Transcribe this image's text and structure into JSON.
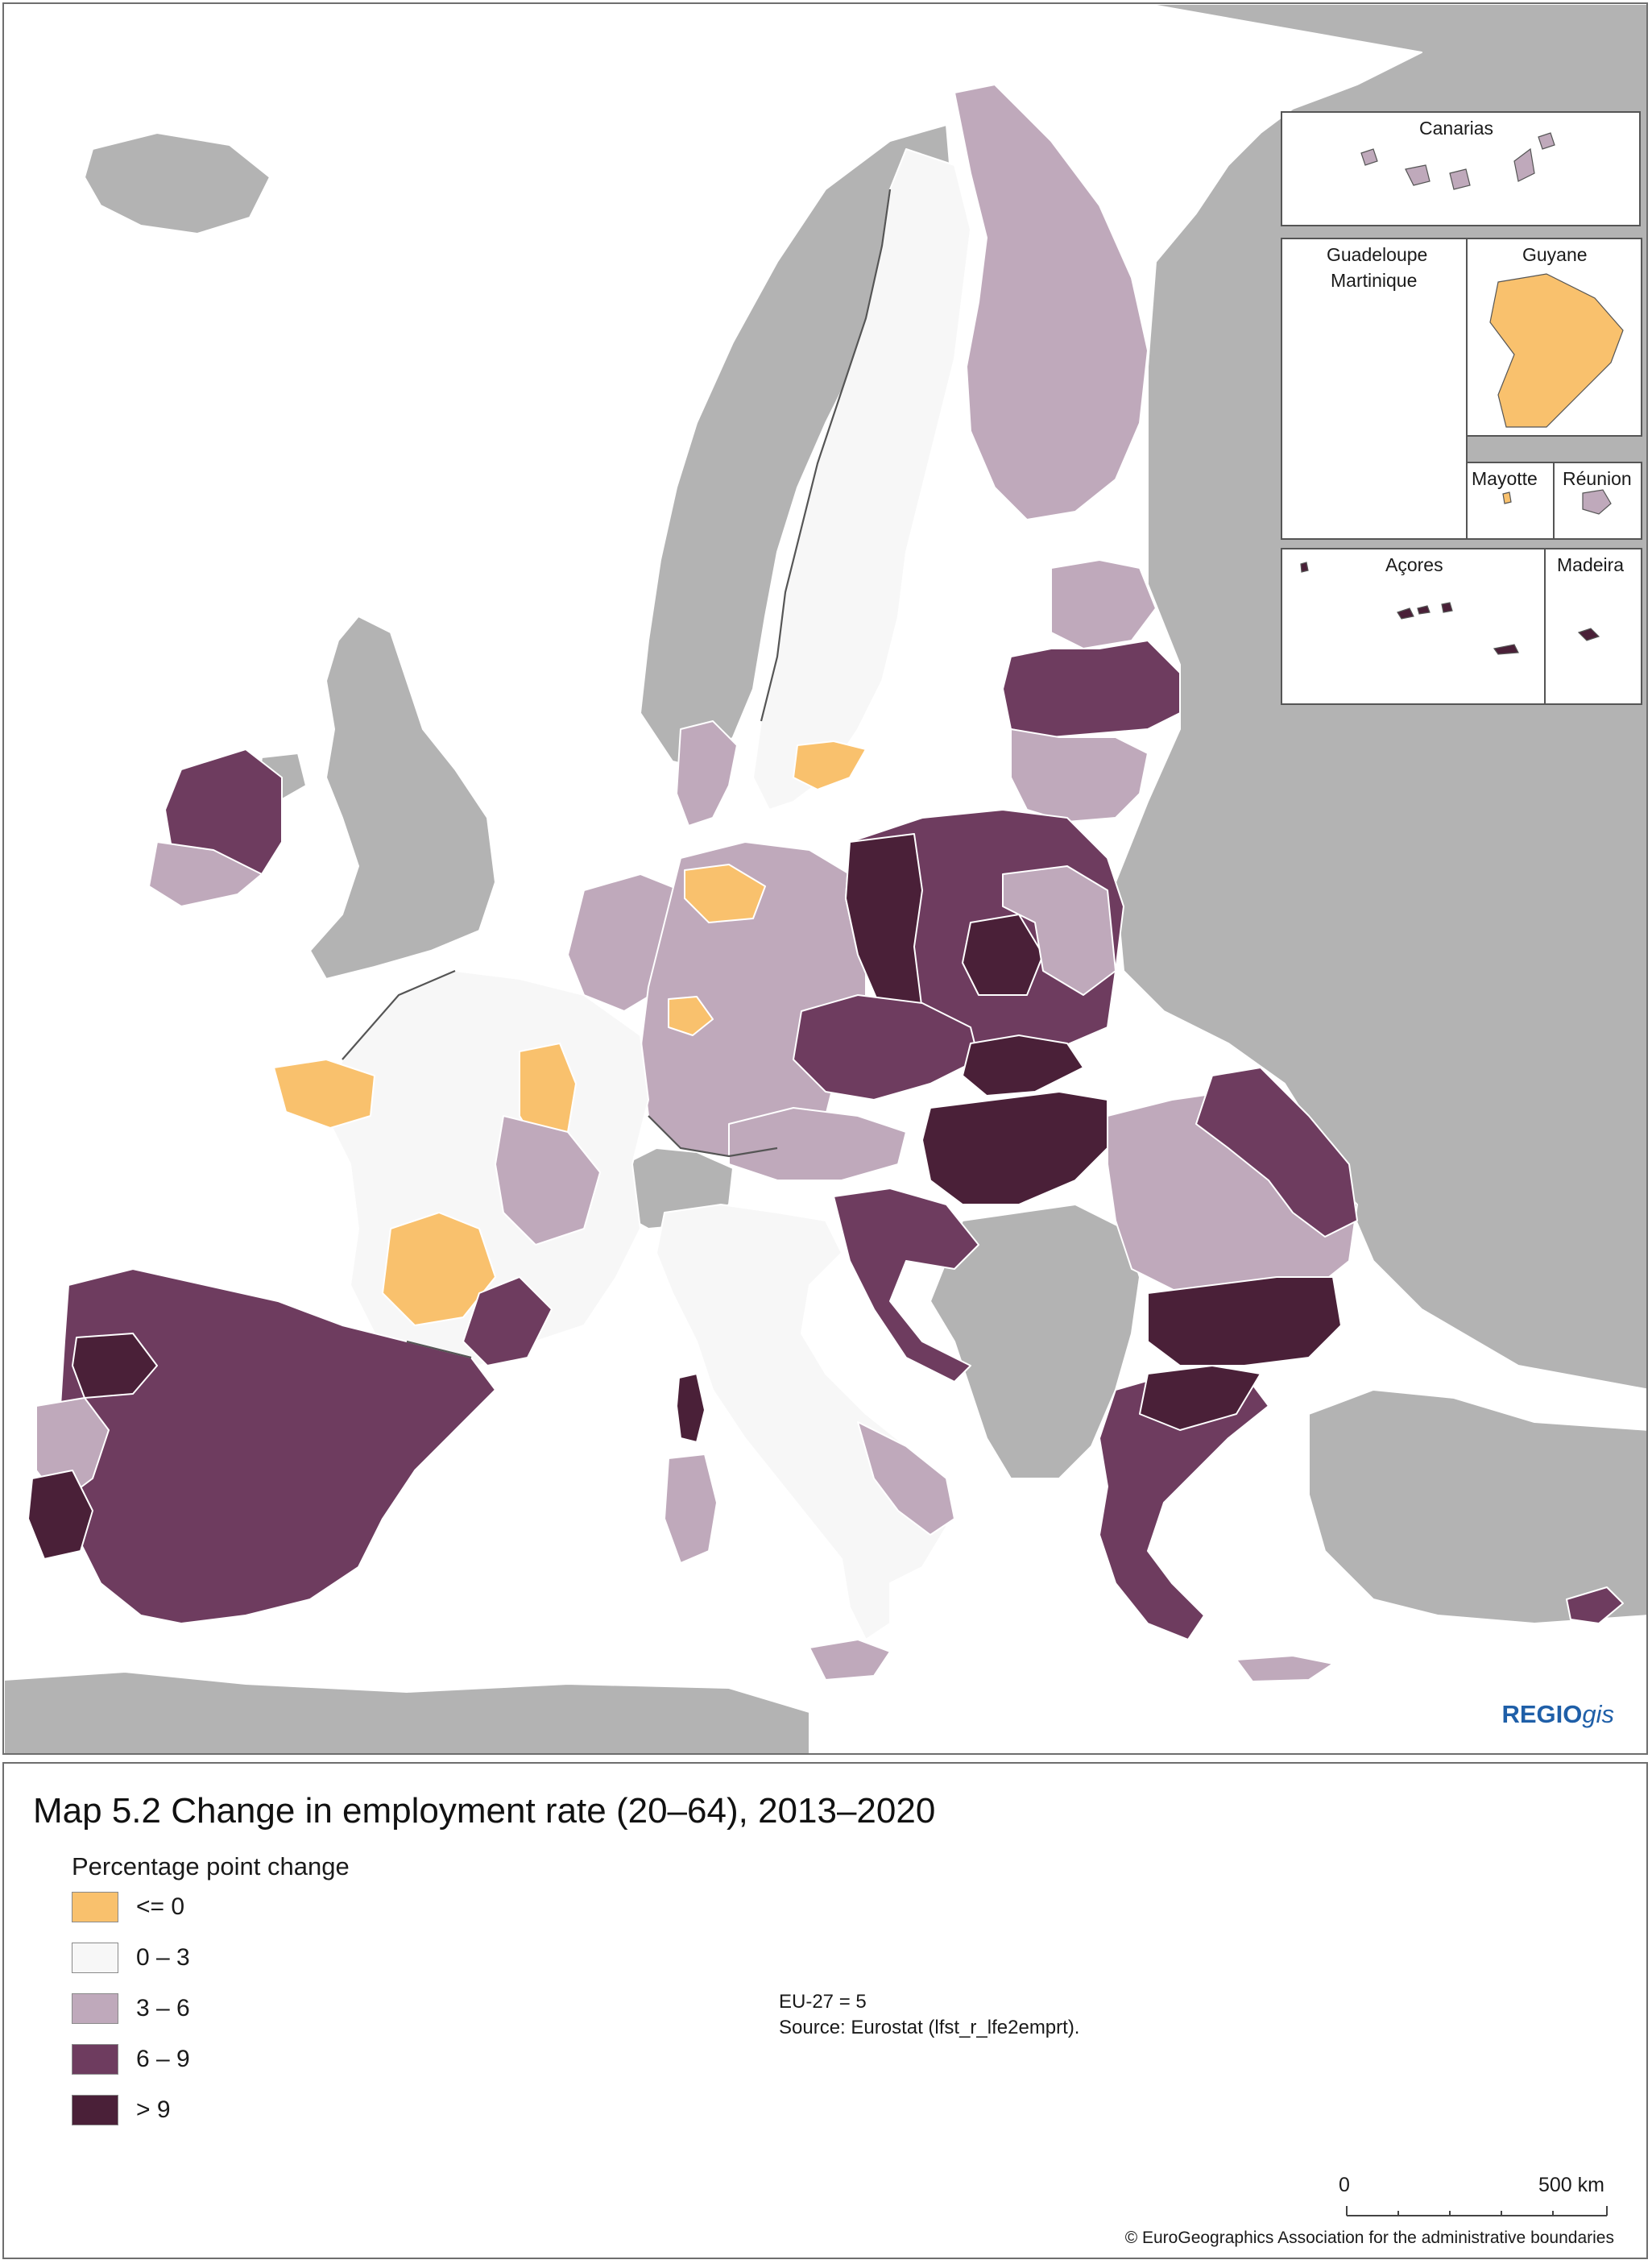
{
  "title": "Map 5.2 Change in employment rate (20–64), 2013–2020",
  "legend": {
    "title": "Percentage point change",
    "items": [
      {
        "label": "<= 0",
        "color": "#f9c16d"
      },
      {
        "label": "0 – 3",
        "color": "#f7f7f7"
      },
      {
        "label": "3 – 6",
        "color": "#bfa9bb"
      },
      {
        "label": "6 – 9",
        "color": "#6e3c5f"
      },
      {
        "label": "> 9",
        "color": "#4a2038"
      }
    ]
  },
  "notes": {
    "eu_value": "EU-27 = 5",
    "source": "Source: Eurostat (lfst_r_lfe2emprt)."
  },
  "insets": {
    "canarias": "Canarias",
    "guadeloupe": "Guadeloupe",
    "martinique": "Martinique",
    "guyane": "Guyane",
    "mayotte": "Mayotte",
    "reunion": "Réunion",
    "acores": "Açores",
    "madeira": "Madeira"
  },
  "scale_bar": {
    "start": "0",
    "end": "500 km"
  },
  "branding": {
    "regio": "REGIO",
    "gis": "gis"
  },
  "copyright": "© EuroGeographics Association for the administrative boundaries",
  "colors": {
    "non_eu": "#b3b3b3",
    "sea": "#ffffff",
    "border": "#555555"
  }
}
